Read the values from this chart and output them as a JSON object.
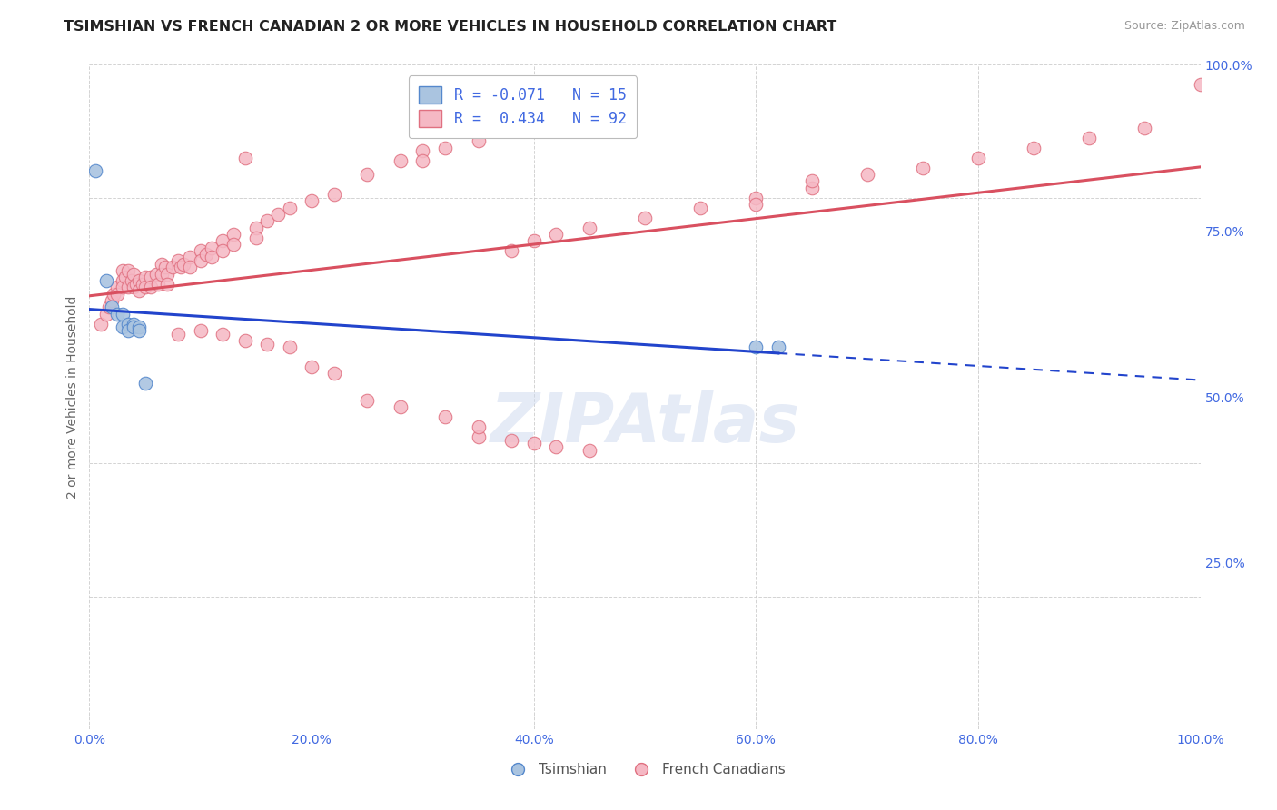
{
  "title": "TSIMSHIAN VS FRENCH CANADIAN 2 OR MORE VEHICLES IN HOUSEHOLD CORRELATION CHART",
  "source": "Source: ZipAtlas.com",
  "ylabel": "2 or more Vehicles in Household",
  "watermark": "ZIPAtlas",
  "legend_tsimshian": "Tsimshian",
  "legend_french": "French Canadians",
  "R_tsimshian": -0.071,
  "N_tsimshian": 15,
  "R_french": 0.434,
  "N_french": 92,
  "tsimshian_x": [
    0.005,
    0.015,
    0.02,
    0.025,
    0.03,
    0.03,
    0.035,
    0.035,
    0.04,
    0.04,
    0.045,
    0.045,
    0.05,
    0.6,
    0.62
  ],
  "tsimshian_y": [
    0.84,
    0.675,
    0.635,
    0.625,
    0.625,
    0.605,
    0.61,
    0.6,
    0.61,
    0.605,
    0.605,
    0.6,
    0.52,
    0.575,
    0.575
  ],
  "french_x": [
    0.01,
    0.015,
    0.018,
    0.02,
    0.022,
    0.025,
    0.025,
    0.03,
    0.03,
    0.03,
    0.032,
    0.035,
    0.035,
    0.038,
    0.04,
    0.04,
    0.042,
    0.045,
    0.045,
    0.048,
    0.05,
    0.05,
    0.055,
    0.055,
    0.06,
    0.062,
    0.065,
    0.065,
    0.068,
    0.07,
    0.07,
    0.075,
    0.08,
    0.082,
    0.085,
    0.09,
    0.09,
    0.1,
    0.1,
    0.105,
    0.11,
    0.11,
    0.12,
    0.12,
    0.13,
    0.13,
    0.14,
    0.15,
    0.15,
    0.16,
    0.17,
    0.18,
    0.2,
    0.22,
    0.25,
    0.28,
    0.3,
    0.3,
    0.32,
    0.35,
    0.38,
    0.4,
    0.42,
    0.45,
    0.5,
    0.55,
    0.6,
    0.6,
    0.65,
    0.65,
    0.7,
    0.75,
    0.8,
    0.85,
    0.9,
    0.95,
    1.0,
    0.35,
    0.38,
    0.4,
    0.42,
    0.45,
    0.08,
    0.1,
    0.12,
    0.14,
    0.16,
    0.18,
    0.2,
    0.22,
    0.25,
    0.28,
    0.32,
    0.35
  ],
  "french_y": [
    0.61,
    0.625,
    0.635,
    0.645,
    0.655,
    0.665,
    0.655,
    0.69,
    0.675,
    0.665,
    0.68,
    0.69,
    0.665,
    0.675,
    0.685,
    0.665,
    0.67,
    0.675,
    0.66,
    0.67,
    0.68,
    0.665,
    0.68,
    0.665,
    0.685,
    0.67,
    0.7,
    0.685,
    0.695,
    0.685,
    0.67,
    0.695,
    0.705,
    0.695,
    0.7,
    0.71,
    0.695,
    0.72,
    0.705,
    0.715,
    0.725,
    0.71,
    0.735,
    0.72,
    0.745,
    0.73,
    0.86,
    0.755,
    0.74,
    0.765,
    0.775,
    0.785,
    0.795,
    0.805,
    0.835,
    0.855,
    0.87,
    0.855,
    0.875,
    0.885,
    0.72,
    0.735,
    0.745,
    0.755,
    0.77,
    0.785,
    0.8,
    0.79,
    0.815,
    0.825,
    0.835,
    0.845,
    0.86,
    0.875,
    0.89,
    0.905,
    0.97,
    0.44,
    0.435,
    0.43,
    0.425,
    0.42,
    0.595,
    0.6,
    0.595,
    0.585,
    0.58,
    0.575,
    0.545,
    0.535,
    0.495,
    0.485,
    0.47,
    0.455
  ],
  "tsimshian_color": "#aac4e0",
  "tsimshian_edge": "#5588cc",
  "french_color": "#f5b8c4",
  "french_edge": "#e07080",
  "trendline_tsimshian_color": "#2244cc",
  "trendline_french_color": "#d95060",
  "background_color": "#ffffff",
  "grid_color": "#cccccc",
  "axis_color": "#4169e1",
  "xlim": [
    0.0,
    1.0
  ],
  "ylim": [
    0.0,
    1.0
  ],
  "y_ticks_right": [
    0.25,
    0.5,
    0.75,
    1.0
  ],
  "y_tick_labels_right": [
    "25.0%",
    "50.0%",
    "75.0%",
    "100.0%"
  ],
  "x_ticks": [
    0.0,
    0.2,
    0.4,
    0.6,
    0.8,
    1.0
  ],
  "x_tick_labels": [
    "0.0%",
    "20.0%",
    "40.0%",
    "60.0%",
    "80.0%",
    "100.0%"
  ]
}
